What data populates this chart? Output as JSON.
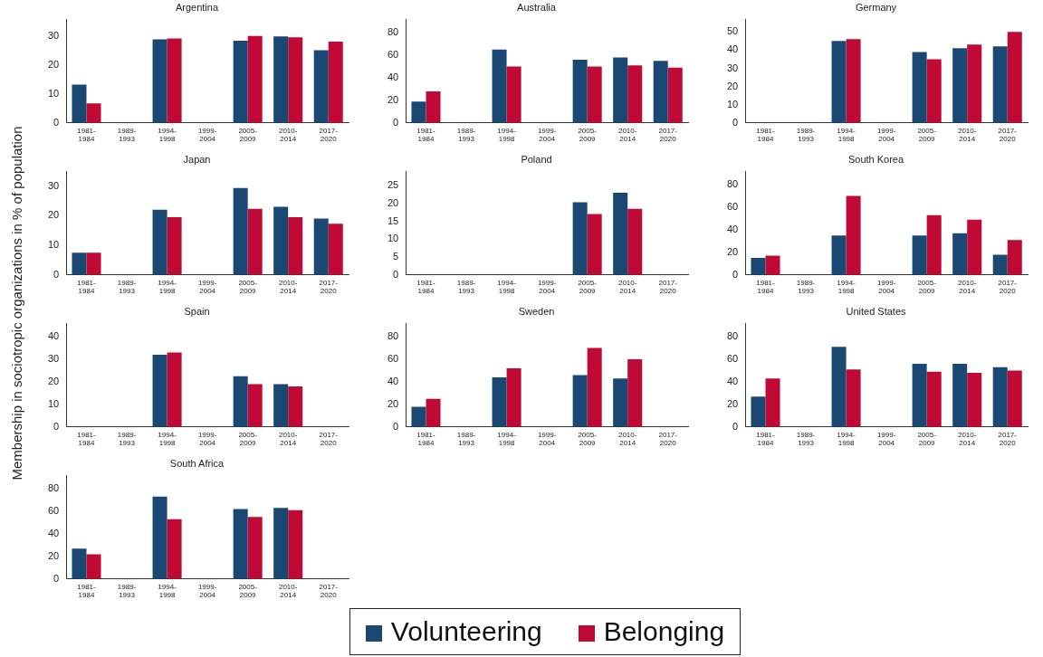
{
  "chart_data": [
    {
      "type": "bar",
      "title": "Argentina",
      "ylabel": "Membership in sociotropic organizations in % of population",
      "legend": "bottom",
      "categories": [
        "1981-1984",
        "1989-1993",
        "1994-1998",
        "1999-2004",
        "2005-2009",
        "2010-2014",
        "2017-2020"
      ],
      "ylim": [
        0,
        36
      ],
      "yticks": [
        0,
        10,
        20,
        30
      ],
      "series": [
        {
          "name": "Volunteering",
          "color": "#1a4873",
          "values": [
            13.3,
            null,
            29,
            null,
            28.5,
            30,
            25.2
          ]
        },
        {
          "name": "Belonging",
          "color": "#c00a35",
          "values": [
            6.8,
            null,
            29.3,
            null,
            30.2,
            29.7,
            28.2
          ]
        }
      ]
    },
    {
      "type": "bar",
      "title": "Australia",
      "categories": [
        "1981-1984",
        "1989-1993",
        "1994-1998",
        "1999-2004",
        "2005-2009",
        "2010-2014",
        "2017-2020"
      ],
      "ylim": [
        0,
        92
      ],
      "yticks": [
        0,
        20,
        40,
        60,
        80
      ],
      "series": [
        {
          "color": "#1a4873",
          "values": [
            19,
            null,
            65,
            null,
            56,
            58,
            55
          ]
        },
        {
          "color": "#c00a35",
          "values": [
            28,
            null,
            50,
            null,
            50,
            51,
            49
          ]
        }
      ]
    },
    {
      "type": "bar",
      "title": "Germany",
      "categories": [
        "1981-1984",
        "1989-1993",
        "1994-1998",
        "1999-2004",
        "2005-2009",
        "2010-2014",
        "2017-2020"
      ],
      "ylim": [
        0,
        57
      ],
      "yticks": [
        0,
        10,
        20,
        30,
        40,
        50
      ],
      "series": [
        {
          "color": "#1a4873",
          "values": [
            null,
            null,
            45,
            null,
            39,
            41,
            42
          ]
        },
        {
          "color": "#c00a35",
          "values": [
            null,
            null,
            46,
            null,
            35,
            43,
            50
          ]
        }
      ]
    },
    {
      "type": "bar",
      "title": "Japan",
      "categories": [
        "1981-1984",
        "1989-1993",
        "1994-1998",
        "1999-2004",
        "2005-2009",
        "2010-2014",
        "2017-2020"
      ],
      "ylim": [
        0,
        35
      ],
      "yticks": [
        0,
        10,
        20,
        30
      ],
      "series": [
        {
          "color": "#1a4873",
          "values": [
            7.5,
            null,
            22,
            null,
            29.3,
            23,
            19
          ]
        },
        {
          "color": "#c00a35",
          "values": [
            7.5,
            null,
            19.5,
            null,
            22.3,
            19.5,
            17.3
          ]
        }
      ]
    },
    {
      "type": "bar",
      "title": "Poland",
      "categories": [
        "1981-1984",
        "1989-1993",
        "1994-1998",
        "1999-2004",
        "2005-2009",
        "2010-2014",
        "2017-2020"
      ],
      "ylim": [
        0,
        29
      ],
      "yticks": [
        0,
        5,
        10,
        15,
        20,
        25
      ],
      "series": [
        {
          "color": "#1a4873",
          "values": [
            null,
            null,
            null,
            null,
            20.3,
            23,
            null
          ]
        },
        {
          "color": "#c00a35",
          "values": [
            null,
            null,
            null,
            null,
            17,
            18.5,
            null
          ]
        }
      ]
    },
    {
      "type": "bar",
      "title": "South Korea",
      "categories": [
        "1981-1984",
        "1989-1993",
        "1994-1998",
        "1999-2004",
        "2005-2009",
        "2010-2014",
        "2017-2020"
      ],
      "ylim": [
        0,
        92
      ],
      "yticks": [
        0,
        20,
        40,
        60,
        80
      ],
      "series": [
        {
          "color": "#1a4873",
          "values": [
            15,
            null,
            35,
            null,
            35,
            37,
            18
          ]
        },
        {
          "color": "#c00a35",
          "values": [
            17,
            null,
            70,
            null,
            53,
            49,
            31
          ]
        }
      ]
    },
    {
      "type": "bar",
      "title": "Spain",
      "categories": [
        "1981-1984",
        "1989-1993",
        "1994-1998",
        "1999-2004",
        "2005-2009",
        "2010-2014",
        "2017-2020"
      ],
      "ylim": [
        0,
        46
      ],
      "yticks": [
        0,
        10,
        20,
        30,
        40
      ],
      "series": [
        {
          "color": "#1a4873",
          "values": [
            null,
            null,
            32,
            null,
            22.5,
            19,
            null
          ]
        },
        {
          "color": "#c00a35",
          "values": [
            null,
            null,
            33,
            null,
            19,
            18,
            null
          ]
        }
      ]
    },
    {
      "type": "bar",
      "title": "Sweden",
      "categories": [
        "1981-1984",
        "1989-1993",
        "1994-1998",
        "1999-2004",
        "2005-2009",
        "2010-2014",
        "2017-2020"
      ],
      "ylim": [
        0,
        92
      ],
      "yticks": [
        0,
        20,
        40,
        60,
        80
      ],
      "series": [
        {
          "color": "#1a4873",
          "values": [
            18,
            null,
            44,
            null,
            46,
            43,
            null
          ]
        },
        {
          "color": "#c00a35",
          "values": [
            25,
            null,
            52,
            null,
            70,
            60,
            null
          ]
        }
      ]
    },
    {
      "type": "bar",
      "title": "United States",
      "categories": [
        "1981-1984",
        "1989-1993",
        "1994-1998",
        "1999-2004",
        "2005-2009",
        "2010-2014",
        "2017-2020"
      ],
      "ylim": [
        0,
        92
      ],
      "yticks": [
        0,
        20,
        40,
        60,
        80
      ],
      "series": [
        {
          "color": "#1a4873",
          "values": [
            27,
            null,
            71,
            null,
            56,
            56,
            53
          ]
        },
        {
          "color": "#c00a35",
          "values": [
            43,
            null,
            51,
            null,
            49,
            48,
            50
          ]
        }
      ]
    },
    {
      "type": "bar",
      "title": "South Africa",
      "categories": [
        "1981-1984",
        "1989-1993",
        "1994-1998",
        "1999-2004",
        "2005-2009",
        "2010-2014",
        "2017-2020"
      ],
      "ylim": [
        0,
        92
      ],
      "yticks": [
        0,
        20,
        40,
        60,
        80
      ],
      "series": [
        {
          "color": "#1a4873",
          "values": [
            27,
            null,
            73,
            null,
            62,
            63,
            null
          ]
        },
        {
          "color": "#c00a35",
          "values": [
            22,
            null,
            53,
            null,
            55,
            61,
            null
          ]
        }
      ]
    }
  ]
}
